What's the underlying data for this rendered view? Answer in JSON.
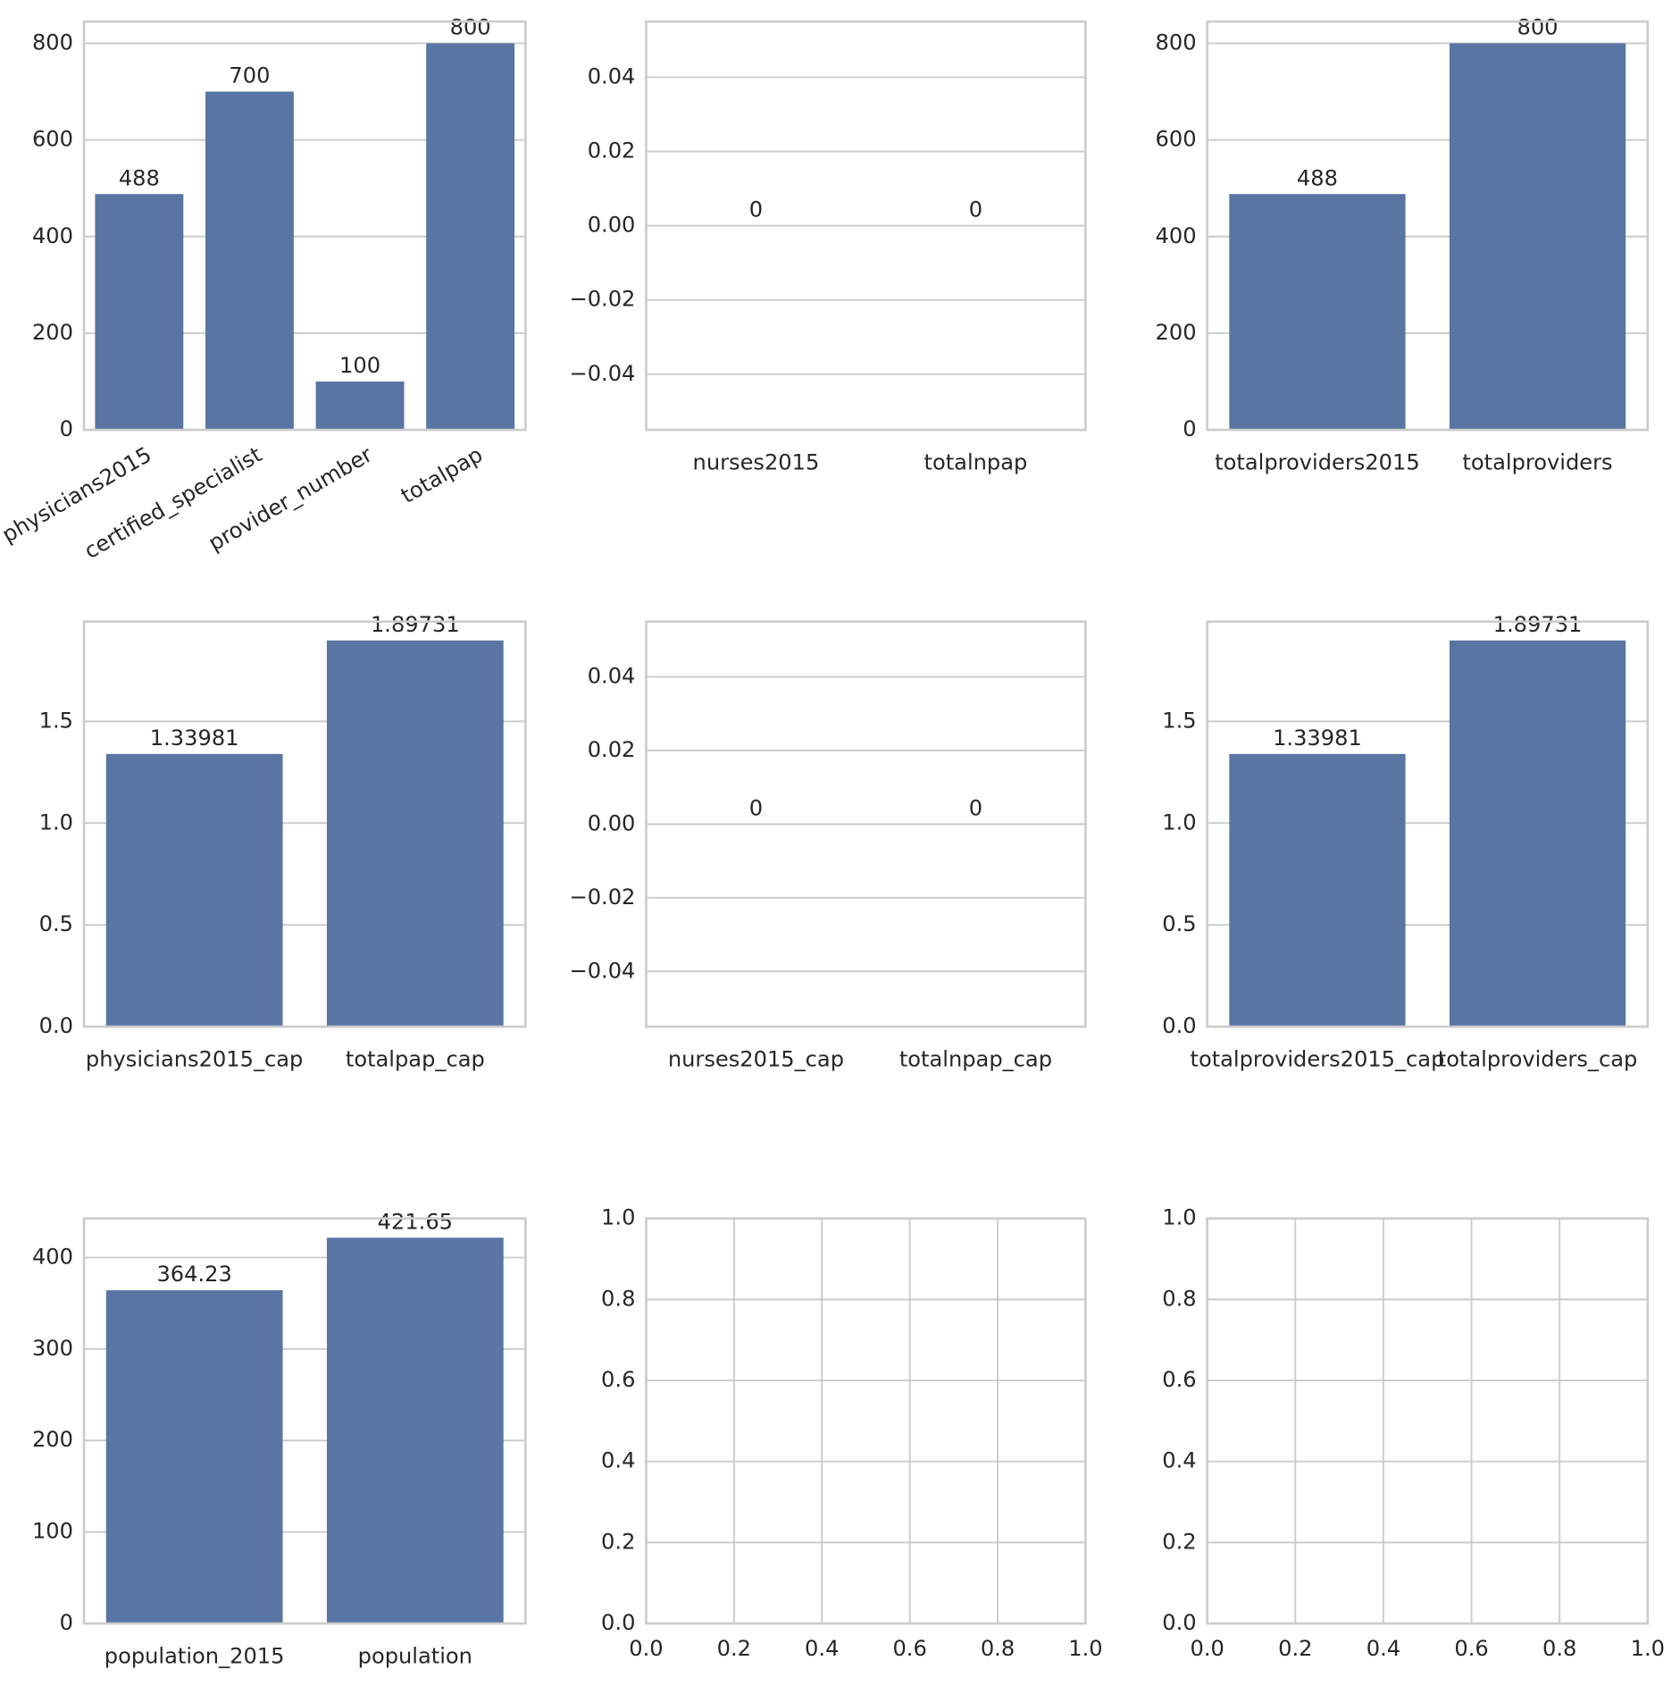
{
  "chart_data": [
    {
      "type": "bar",
      "categories": [
        "physicians2015",
        "certified_specialist",
        "provider_number",
        "totalpap"
      ],
      "values": [
        488,
        700,
        100,
        800
      ],
      "color": "#5975a4",
      "ylim": [
        0,
        845
      ],
      "yticks": [
        0,
        200,
        400,
        600,
        800
      ],
      "grid": true,
      "x_label_rotation": 30
    },
    {
      "type": "bar",
      "categories": [
        "nurses2015",
        "totalnpap"
      ],
      "values": [
        0,
        0
      ],
      "color": "#5975a4",
      "ylim": [
        -0.055,
        0.055
      ],
      "yticks": [
        {
          "value": -0.04,
          "label": "−0.04"
        },
        {
          "value": -0.02,
          "label": "−0.02"
        },
        {
          "value": 0,
          "label": "0.00"
        },
        0.02,
        0.04
      ],
      "grid": true
    },
    {
      "type": "bar",
      "categories": [
        "totalproviders2015",
        "totalproviders"
      ],
      "values": [
        488,
        800
      ],
      "color": "#5975a4",
      "ylim": [
        0,
        845
      ],
      "yticks": [
        0,
        200,
        400,
        600,
        800
      ],
      "grid": true
    },
    {
      "type": "bar",
      "categories": [
        "physicians2015_cap",
        "totalpap_cap"
      ],
      "values": [
        1.33981,
        1.89731
      ],
      "color": "#5975a4",
      "ylim": [
        0,
        1.99
      ],
      "yticks": [
        {
          "value": 0,
          "label": "0.0"
        },
        0.5,
        {
          "value": 1,
          "label": "1.0"
        },
        1.5
      ],
      "grid": true
    },
    {
      "type": "bar",
      "categories": [
        "nurses2015_cap",
        "totalnpap_cap"
      ],
      "values": [
        0,
        0
      ],
      "color": "#5975a4",
      "ylim": [
        -0.055,
        0.055
      ],
      "yticks": [
        {
          "value": -0.04,
          "label": "−0.04"
        },
        {
          "value": -0.02,
          "label": "−0.02"
        },
        {
          "value": 0,
          "label": "0.00"
        },
        0.02,
        0.04
      ],
      "grid": true
    },
    {
      "type": "bar",
      "categories": [
        "totalproviders2015_cap",
        "totalproviders_cap"
      ],
      "values": [
        1.33981,
        1.89731
      ],
      "color": "#5975a4",
      "ylim": [
        0,
        1.99
      ],
      "yticks": [
        {
          "value": 0,
          "label": "0.0"
        },
        0.5,
        {
          "value": 1,
          "label": "1.0"
        },
        1.5
      ],
      "grid": true
    },
    {
      "type": "bar",
      "categories": [
        "population_2015",
        "population"
      ],
      "values": [
        364.23,
        421.65
      ],
      "color": "#5975a4",
      "ylim": [
        0,
        442.7
      ],
      "yticks": [
        0,
        100,
        200,
        300,
        400
      ],
      "grid": true
    },
    {
      "type": "empty",
      "xlim": [
        0,
        1
      ],
      "ylim": [
        0,
        1
      ],
      "xticks": [
        {
          "value": 0,
          "label": "0.0"
        },
        0.2,
        0.4,
        0.6,
        0.8,
        {
          "value": 1,
          "label": "1.0"
        }
      ],
      "yticks": [
        {
          "value": 0,
          "label": "0.0"
        },
        0.2,
        0.4,
        0.6,
        0.8,
        {
          "value": 1,
          "label": "1.0"
        }
      ],
      "grid": true
    },
    {
      "type": "empty",
      "xlim": [
        0,
        1
      ],
      "ylim": [
        0,
        1
      ],
      "xticks": [
        {
          "value": 0,
          "label": "0.0"
        },
        0.2,
        0.4,
        0.6,
        0.8,
        {
          "value": 1,
          "label": "1.0"
        }
      ],
      "yticks": [
        {
          "value": 0,
          "label": "0.0"
        },
        0.2,
        0.4,
        0.6,
        0.8,
        {
          "value": 1,
          "label": "1.0"
        }
      ],
      "grid": true
    }
  ]
}
